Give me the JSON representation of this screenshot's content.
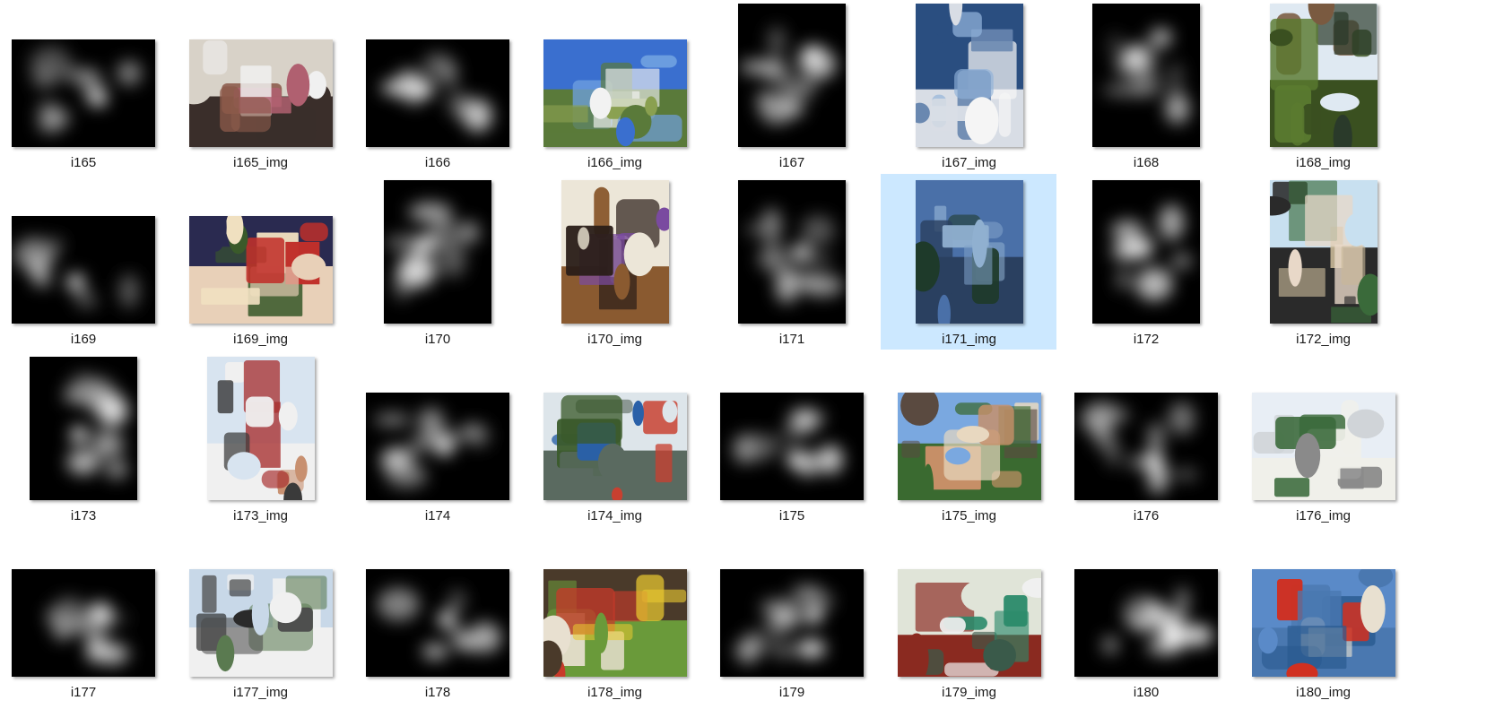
{
  "files": [
    {
      "label": "i165",
      "kind": "saliency",
      "orient": "landscape"
    },
    {
      "label": "i165_img",
      "kind": "photo",
      "orient": "landscape",
      "palette": [
        "#d8d2c8",
        "#8b5a4a",
        "#3a2e2a",
        "#f0f0f0",
        "#b06070"
      ]
    },
    {
      "label": "i166",
      "kind": "saliency",
      "orient": "landscape"
    },
    {
      "label": "i166_img",
      "kind": "photo",
      "orient": "landscape",
      "palette": [
        "#3a6fcf",
        "#6fa0e0",
        "#5a7a3a",
        "#8aa050",
        "#f2f2f2"
      ]
    },
    {
      "label": "i167",
      "kind": "saliency",
      "orient": "portrait"
    },
    {
      "label": "i167_img",
      "kind": "photo",
      "orient": "portrait",
      "palette": [
        "#2a4e80",
        "#8fb0d8",
        "#d8dde5",
        "#f5f5f5",
        "#6a88b0"
      ]
    },
    {
      "label": "i168",
      "kind": "saliency",
      "orient": "portrait"
    },
    {
      "label": "i168_img",
      "kind": "photo",
      "orient": "portrait",
      "palette": [
        "#dfe9f2",
        "#5a7a30",
        "#3a5020",
        "#7a5a40",
        "#2a3a2a"
      ]
    },
    {
      "label": "i169",
      "kind": "saliency",
      "orient": "landscape"
    },
    {
      "label": "i169_img",
      "kind": "photo",
      "orient": "landscape",
      "palette": [
        "#2a2a50",
        "#c0302a",
        "#e8d0b8",
        "#3a5a2a",
        "#f0e0c0"
      ]
    },
    {
      "label": "i170",
      "kind": "saliency",
      "orient": "portrait"
    },
    {
      "label": "i170_img",
      "kind": "photo",
      "orient": "portrait",
      "palette": [
        "#ece6d8",
        "#2a1e18",
        "#8a5a30",
        "#c8c0b0",
        "#7a4aa0"
      ]
    },
    {
      "label": "i171",
      "kind": "saliency",
      "orient": "portrait"
    },
    {
      "label": "i171_img",
      "kind": "photo",
      "orient": "portrait",
      "palette": [
        "#4a70a8",
        "#7fa0c8",
        "#2a4060",
        "#1e3a2a",
        "#90b0d0"
      ]
    },
    {
      "label": "i172",
      "kind": "saliency",
      "orient": "portrait"
    },
    {
      "label": "i172_img",
      "kind": "photo",
      "orient": "portrait",
      "palette": [
        "#c8e0f0",
        "#c8b898",
        "#2a2a2a",
        "#3a6a3a",
        "#e8d8c8"
      ]
    },
    {
      "label": "i173",
      "kind": "saliency",
      "orient": "portrait"
    },
    {
      "label": "i173_img",
      "kind": "photo",
      "orient": "portrait",
      "palette": [
        "#d8e4f0",
        "#a83030",
        "#f0f0f0",
        "#3a3a3a",
        "#c89070"
      ]
    },
    {
      "label": "i174",
      "kind": "saliency",
      "orient": "landscape"
    },
    {
      "label": "i174_img",
      "kind": "photo",
      "orient": "landscape",
      "palette": [
        "#dde5ea",
        "#3a5a2a",
        "#5a6a60",
        "#2a60a8",
        "#c84030"
      ]
    },
    {
      "label": "i175",
      "kind": "saliency",
      "orient": "landscape"
    },
    {
      "label": "i175_img",
      "kind": "photo",
      "orient": "landscape",
      "palette": [
        "#7aa8e0",
        "#c89068",
        "#3a6a30",
        "#e8d8c0",
        "#5a4a40"
      ]
    },
    {
      "label": "i176",
      "kind": "saliency",
      "orient": "landscape"
    },
    {
      "label": "i176_img",
      "kind": "photo",
      "orient": "landscape",
      "palette": [
        "#e8eef5",
        "#3a6a3a",
        "#f0f0ea",
        "#8a8a8a",
        "#d0d4d8"
      ]
    },
    {
      "label": "i177",
      "kind": "saliency",
      "orient": "landscape"
    },
    {
      "label": "i177_img",
      "kind": "photo",
      "orient": "landscape",
      "palette": [
        "#c8d8e8",
        "#4a4a4a",
        "#f0f0f0",
        "#5a7a50",
        "#2a2a2a"
      ]
    },
    {
      "label": "i178",
      "kind": "saliency",
      "orient": "landscape"
    },
    {
      "label": "i178_img",
      "kind": "photo",
      "orient": "landscape",
      "palette": [
        "#4a3a2a",
        "#e8c830",
        "#6a9a3a",
        "#c83a2a",
        "#e8e0d0"
      ]
    },
    {
      "label": "i179",
      "kind": "saliency",
      "orient": "landscape"
    },
    {
      "label": "i179_img",
      "kind": "photo",
      "orient": "landscape",
      "palette": [
        "#e0e4d8",
        "#2a8a6a",
        "#8a2a20",
        "#f0f0f0",
        "#3a5a4a"
      ]
    },
    {
      "label": "i180",
      "kind": "saliency",
      "orient": "landscape"
    },
    {
      "label": "i180_img",
      "kind": "photo",
      "orient": "landscape",
      "palette": [
        "#5a8ac8",
        "#2a5a90",
        "#4a78b0",
        "#e8e0d0",
        "#d03020"
      ]
    }
  ],
  "selected_index": 13
}
